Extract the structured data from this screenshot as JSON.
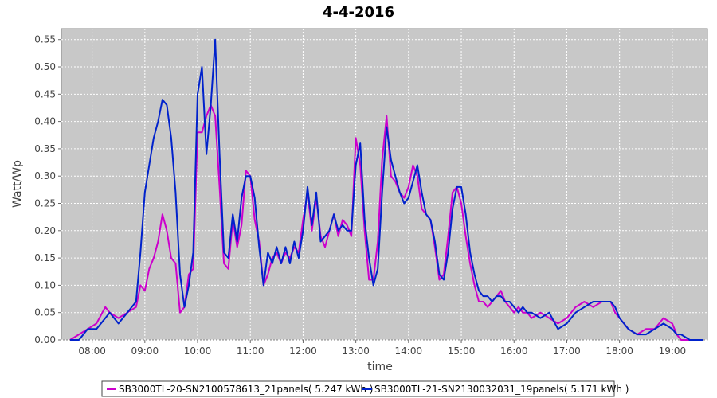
{
  "chart_data": {
    "type": "line",
    "title": "4-4-2016",
    "xlabel": "time",
    "ylabel": "Watt/Wp",
    "xlim": [
      "07:25",
      "19:40"
    ],
    "ylim": [
      0,
      0.57
    ],
    "yticks": [
      "0.00",
      "0.05",
      "0.10",
      "0.15",
      "0.20",
      "0.25",
      "0.30",
      "0.35",
      "0.40",
      "0.45",
      "0.50",
      "0.55"
    ],
    "xticks": [
      "08:00",
      "09:00",
      "10:00",
      "11:00",
      "12:00",
      "13:00",
      "14:00",
      "15:00",
      "16:00",
      "17:00",
      "18:00",
      "19:00"
    ],
    "grid": true,
    "legend_position": "bottom",
    "colors": {
      "plot_bg": "#c8c8c8",
      "grid": "#ffffff"
    },
    "series": [
      {
        "name": "SB3000TL-20-SN2100578613_21panels( 5.247 kWh )",
        "color": "#cc00cc",
        "x": [
          "07:35",
          "07:45",
          "07:55",
          "08:05",
          "08:15",
          "08:20",
          "08:30",
          "08:40",
          "08:50",
          "08:55",
          "09:00",
          "09:05",
          "09:10",
          "09:15",
          "09:20",
          "09:25",
          "09:30",
          "09:35",
          "09:40",
          "09:45",
          "09:50",
          "09:55",
          "10:00",
          "10:05",
          "10:10",
          "10:15",
          "10:20",
          "10:25",
          "10:30",
          "10:35",
          "10:40",
          "10:45",
          "10:50",
          "10:55",
          "11:00",
          "11:05",
          "11:10",
          "11:15",
          "11:20",
          "11:25",
          "11:30",
          "11:35",
          "11:40",
          "11:45",
          "11:50",
          "11:55",
          "12:00",
          "12:05",
          "12:10",
          "12:15",
          "12:20",
          "12:25",
          "12:30",
          "12:35",
          "12:40",
          "12:45",
          "12:50",
          "12:55",
          "13:00",
          "13:05",
          "13:10",
          "13:15",
          "13:20",
          "13:25",
          "13:30",
          "13:35",
          "13:40",
          "13:45",
          "13:50",
          "13:55",
          "14:00",
          "14:05",
          "14:10",
          "14:15",
          "14:20",
          "14:25",
          "14:30",
          "14:35",
          "14:40",
          "14:45",
          "14:50",
          "14:55",
          "15:00",
          "15:05",
          "15:10",
          "15:15",
          "15:20",
          "15:25",
          "15:30",
          "15:35",
          "15:40",
          "15:45",
          "15:50",
          "15:55",
          "16:00",
          "16:05",
          "16:10",
          "16:15",
          "16:20",
          "16:30",
          "16:40",
          "16:50",
          "17:00",
          "17:10",
          "17:20",
          "17:30",
          "17:40",
          "17:50",
          "17:55",
          "18:00",
          "18:05",
          "18:10",
          "18:20",
          "18:30",
          "18:40",
          "18:50",
          "19:00",
          "19:05",
          "19:10",
          "19:20",
          "19:30",
          "19:35"
        ],
        "values": [
          0.0,
          0.01,
          0.02,
          0.03,
          0.06,
          0.05,
          0.04,
          0.05,
          0.06,
          0.1,
          0.09,
          0.13,
          0.15,
          0.18,
          0.23,
          0.2,
          0.15,
          0.14,
          0.05,
          0.06,
          0.12,
          0.13,
          0.38,
          0.38,
          0.41,
          0.43,
          0.41,
          0.28,
          0.14,
          0.13,
          0.22,
          0.17,
          0.21,
          0.31,
          0.3,
          0.22,
          0.18,
          0.1,
          0.12,
          0.15,
          0.16,
          0.14,
          0.16,
          0.15,
          0.17,
          0.16,
          0.22,
          0.27,
          0.2,
          0.26,
          0.19,
          0.17,
          0.2,
          0.23,
          0.19,
          0.22,
          0.21,
          0.19,
          0.37,
          0.32,
          0.2,
          0.11,
          0.11,
          0.18,
          0.33,
          0.41,
          0.3,
          0.29,
          0.27,
          0.26,
          0.28,
          0.32,
          0.3,
          0.24,
          0.23,
          0.22,
          0.17,
          0.11,
          0.12,
          0.19,
          0.27,
          0.28,
          0.25,
          0.19,
          0.14,
          0.1,
          0.07,
          0.07,
          0.06,
          0.07,
          0.08,
          0.09,
          0.07,
          0.06,
          0.05,
          0.06,
          0.05,
          0.05,
          0.04,
          0.05,
          0.04,
          0.03,
          0.04,
          0.06,
          0.07,
          0.06,
          0.07,
          0.07,
          0.05,
          0.04,
          0.03,
          0.02,
          0.01,
          0.02,
          0.02,
          0.04,
          0.03,
          0.01,
          0.0,
          0.0,
          0.0,
          0.0
        ]
      },
      {
        "name": "SB3000TL-21-SN2130032031_19panels( 5.171 kWh )",
        "color": "#0022cc",
        "x": [
          "07:35",
          "07:45",
          "07:55",
          "08:05",
          "08:15",
          "08:20",
          "08:30",
          "08:40",
          "08:50",
          "08:55",
          "09:00",
          "09:05",
          "09:10",
          "09:15",
          "09:20",
          "09:25",
          "09:30",
          "09:35",
          "09:40",
          "09:45",
          "09:50",
          "09:55",
          "10:00",
          "10:05",
          "10:10",
          "10:15",
          "10:20",
          "10:25",
          "10:30",
          "10:35",
          "10:40",
          "10:45",
          "10:50",
          "10:55",
          "11:00",
          "11:05",
          "11:10",
          "11:15",
          "11:20",
          "11:25",
          "11:30",
          "11:35",
          "11:40",
          "11:45",
          "11:50",
          "11:55",
          "12:00",
          "12:05",
          "12:10",
          "12:15",
          "12:20",
          "12:25",
          "12:30",
          "12:35",
          "12:40",
          "12:45",
          "12:50",
          "12:55",
          "13:00",
          "13:05",
          "13:10",
          "13:15",
          "13:20",
          "13:25",
          "13:30",
          "13:35",
          "13:40",
          "13:45",
          "13:50",
          "13:55",
          "14:00",
          "14:05",
          "14:10",
          "14:15",
          "14:20",
          "14:25",
          "14:30",
          "14:35",
          "14:40",
          "14:45",
          "14:50",
          "14:55",
          "15:00",
          "15:05",
          "15:10",
          "15:15",
          "15:20",
          "15:25",
          "15:30",
          "15:35",
          "15:40",
          "15:45",
          "15:50",
          "15:55",
          "16:00",
          "16:05",
          "16:10",
          "16:15",
          "16:20",
          "16:30",
          "16:40",
          "16:50",
          "17:00",
          "17:10",
          "17:20",
          "17:30",
          "17:40",
          "17:50",
          "17:55",
          "18:00",
          "18:05",
          "18:10",
          "18:20",
          "18:30",
          "18:40",
          "18:50",
          "19:00",
          "19:05",
          "19:10",
          "19:20",
          "19:30",
          "19:35"
        ],
        "values": [
          0.0,
          0.0,
          0.02,
          0.02,
          0.04,
          0.05,
          0.03,
          0.05,
          0.07,
          0.16,
          0.27,
          0.32,
          0.37,
          0.4,
          0.44,
          0.43,
          0.37,
          0.27,
          0.12,
          0.06,
          0.1,
          0.16,
          0.45,
          0.5,
          0.34,
          0.43,
          0.55,
          0.34,
          0.16,
          0.15,
          0.23,
          0.18,
          0.26,
          0.3,
          0.3,
          0.26,
          0.17,
          0.1,
          0.16,
          0.14,
          0.17,
          0.14,
          0.17,
          0.14,
          0.18,
          0.15,
          0.2,
          0.28,
          0.21,
          0.27,
          0.18,
          0.19,
          0.2,
          0.23,
          0.2,
          0.21,
          0.2,
          0.2,
          0.32,
          0.36,
          0.22,
          0.15,
          0.1,
          0.13,
          0.27,
          0.39,
          0.33,
          0.3,
          0.27,
          0.25,
          0.26,
          0.29,
          0.32,
          0.27,
          0.23,
          0.22,
          0.18,
          0.12,
          0.11,
          0.16,
          0.24,
          0.28,
          0.28,
          0.23,
          0.16,
          0.12,
          0.09,
          0.08,
          0.08,
          0.07,
          0.08,
          0.08,
          0.07,
          0.07,
          0.06,
          0.05,
          0.06,
          0.05,
          0.05,
          0.04,
          0.05,
          0.02,
          0.03,
          0.05,
          0.06,
          0.07,
          0.07,
          0.07,
          0.06,
          0.04,
          0.03,
          0.02,
          0.01,
          0.01,
          0.02,
          0.03,
          0.02,
          0.01,
          0.01,
          0.0,
          0.0,
          0.0
        ]
      }
    ]
  }
}
